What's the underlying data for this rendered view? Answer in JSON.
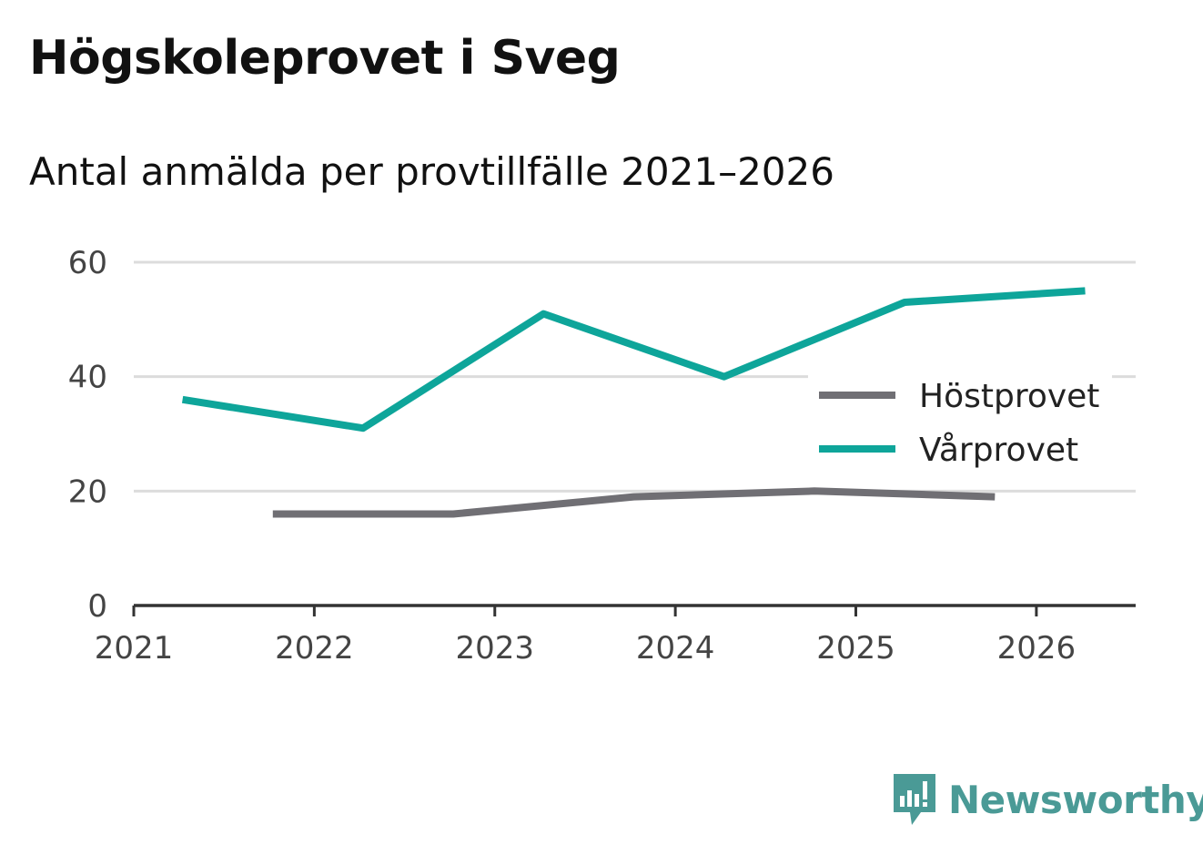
{
  "header": {
    "title": "Högskoleprovet i Sveg",
    "subtitle": "Antal anmälda per provtillfälle 2021–2026"
  },
  "chart_data": {
    "type": "line",
    "title": "Högskoleprovet i Sveg",
    "subtitle": "Antal anmälda per provtillfälle 2021–2026",
    "xlim": [
      2021,
      2026.55
    ],
    "ylim": [
      0,
      60
    ],
    "yticks": [
      0,
      20,
      40,
      60
    ],
    "xticks": [
      2021,
      2022,
      2023,
      2024,
      2025,
      2026
    ],
    "grid": true,
    "legend_position": "center-right",
    "series": [
      {
        "name": "Höstprovet",
        "color": "#706f74",
        "x": [
          2021.77,
          2022.77,
          2023.77,
          2024.77,
          2025.77
        ],
        "y": [
          16,
          16,
          19,
          20,
          19
        ]
      },
      {
        "name": "Vårprovet",
        "color": "#0ea59a",
        "x": [
          2021.27,
          2022.27,
          2023.27,
          2024.27,
          2025.27,
          2026.27
        ],
        "y": [
          36,
          31,
          51,
          40,
          53,
          55
        ]
      }
    ]
  },
  "brand": {
    "name": "Newsworthy",
    "icon": "newsworthy-logo-icon",
    "color": "#4a9a96"
  }
}
